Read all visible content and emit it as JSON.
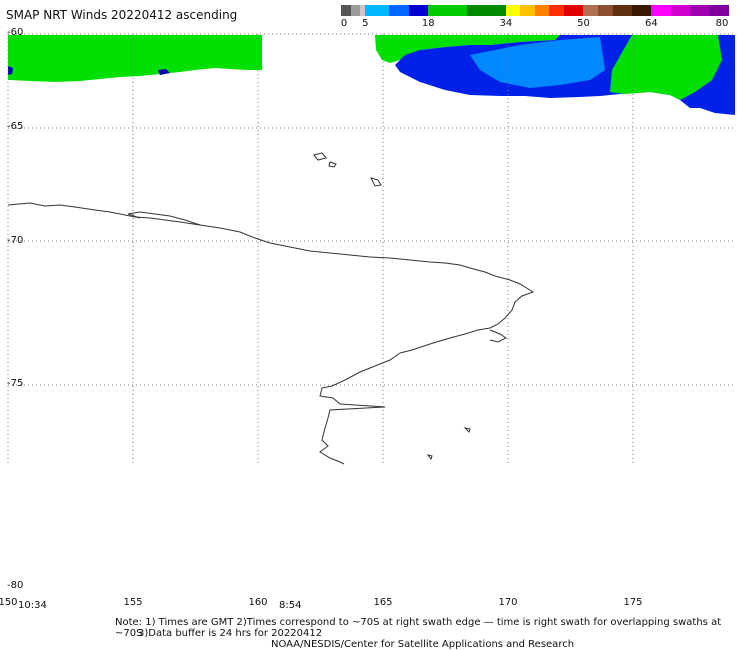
{
  "title": "SMAP NRT Winds 20220412 ascending",
  "color_scale": {
    "tick_labels": [
      "0",
      "5",
      "18",
      "34",
      "50",
      "64",
      "80"
    ],
    "segments": [
      {
        "from": 0,
        "to": 2,
        "color": "#555555"
      },
      {
        "from": 2,
        "to": 4,
        "color": "#9a9a9a"
      },
      {
        "from": 4,
        "to": 5,
        "color": "#c8c8c8"
      },
      {
        "from": 5,
        "to": 10,
        "color": "#00b8ff"
      },
      {
        "from": 10,
        "to": 14,
        "color": "#0066ff"
      },
      {
        "from": 14,
        "to": 18,
        "color": "#0000d0"
      },
      {
        "from": 18,
        "to": 26,
        "color": "#00cc00"
      },
      {
        "from": 26,
        "to": 34,
        "color": "#008800"
      },
      {
        "from": 34,
        "to": 37,
        "color": "#ffff00"
      },
      {
        "from": 37,
        "to": 40,
        "color": "#ffc000"
      },
      {
        "from": 40,
        "to": 43,
        "color": "#ff8000"
      },
      {
        "from": 43,
        "to": 46,
        "color": "#ff3000"
      },
      {
        "from": 46,
        "to": 50,
        "color": "#e00000"
      },
      {
        "from": 50,
        "to": 53,
        "color": "#b07050"
      },
      {
        "from": 53,
        "to": 56,
        "color": "#8a5030"
      },
      {
        "from": 56,
        "to": 60,
        "color": "#603010"
      },
      {
        "from": 60,
        "to": 64,
        "color": "#3a1800"
      },
      {
        "from": 64,
        "to": 68,
        "color": "#ff00ff"
      },
      {
        "from": 68,
        "to": 72,
        "color": "#d000d0"
      },
      {
        "from": 72,
        "to": 76,
        "color": "#a000b0"
      },
      {
        "from": 76,
        "to": 80,
        "color": "#8000a0"
      }
    ]
  },
  "lat_labels": [
    "-60",
    "-65",
    "-70",
    "-75",
    "-80"
  ],
  "lon_labels": [
    "150",
    "155",
    "160",
    "165",
    "170",
    "175"
  ],
  "times": [
    "10:34",
    "8:54"
  ],
  "notes": {
    "line1": "Note: 1) Times are GMT 2)Times correspond to ~70S at right swath edge — time is right swath for overlapping swaths at ~70S",
    "line2": "3)Data buffer is 24 hrs for 20220412",
    "line3": "NOAA/NESDIS/Center for Satellite Applications and Research"
  },
  "map": {
    "wind_colors": {
      "green": "#00e000",
      "blue": "#0022e8",
      "lightblue": "#0088ff",
      "navy": "#0000b0"
    },
    "coast_color": "#333333",
    "grid_color": "#777777"
  }
}
